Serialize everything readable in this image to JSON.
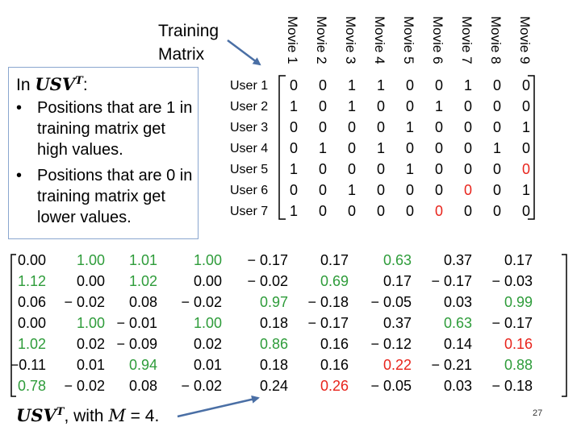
{
  "title_lines": [
    "Training",
    "Matrix"
  ],
  "columns": [
    "Movie 1",
    "Movie 2",
    "Movie 3",
    "Movie 4",
    "Movie 5",
    "Movie 6",
    "Movie 7",
    "Movie 8",
    "Movie 9"
  ],
  "rows": [
    "User 1",
    "User 2",
    "User 3",
    "User 4",
    "User 5",
    "User 6",
    "User 7"
  ],
  "training_matrix": [
    [
      0,
      0,
      1,
      1,
      0,
      0,
      1,
      0,
      0
    ],
    [
      1,
      0,
      1,
      0,
      0,
      1,
      0,
      0,
      0
    ],
    [
      0,
      0,
      0,
      0,
      1,
      0,
      0,
      0,
      1
    ],
    [
      0,
      1,
      0,
      1,
      0,
      0,
      0,
      1,
      0
    ],
    [
      1,
      0,
      0,
      0,
      1,
      0,
      0,
      0,
      0
    ],
    [
      0,
      0,
      1,
      0,
      0,
      0,
      0,
      0,
      1
    ],
    [
      1,
      0,
      0,
      0,
      0,
      0,
      0,
      0,
      0
    ]
  ],
  "training_colors": [
    [
      "",
      "",
      "",
      "",
      "",
      "",
      "",
      "",
      ""
    ],
    [
      "",
      "",
      "",
      "",
      "",
      "",
      "",
      "",
      ""
    ],
    [
      "",
      "",
      "",
      "",
      "",
      "",
      "",
      "",
      ""
    ],
    [
      "",
      "",
      "",
      "",
      "",
      "",
      "",
      "",
      ""
    ],
    [
      "",
      "",
      "",
      "",
      "",
      "",
      "",
      "",
      "red"
    ],
    [
      "",
      "",
      "",
      "",
      "",
      "",
      "red",
      "",
      ""
    ],
    [
      "",
      "",
      "",
      "",
      "",
      "red",
      "",
      "",
      ""
    ]
  ],
  "note": {
    "prefix": "In ",
    "math": "USV",
    "math_sup": "T",
    "suffix": ":",
    "bullet_glyph": "•",
    "bullets": [
      "Positions that are 1 in training matrix get high values.",
      "Positions that are 0 in training matrix get lower values."
    ]
  },
  "result_matrix": [
    [
      "0.00",
      "1.00",
      "1.01",
      "1.00",
      "− 0.17",
      "0.17",
      "0.63",
      "0.37",
      "0.17"
    ],
    [
      "1.12",
      "0.00",
      "1.02",
      "0.00",
      "− 0.02",
      "0.69",
      "0.17",
      "− 0.17",
      "− 0.03"
    ],
    [
      "0.06",
      "− 0.02",
      "0.08",
      "− 0.02",
      "0.97",
      "− 0.18",
      "− 0.05",
      "0.03",
      "0.99"
    ],
    [
      "0.00",
      "1.00",
      "− 0.01",
      "1.00",
      "0.18",
      "− 0.17",
      "0.37",
      "0.63",
      "− 0.17"
    ],
    [
      "1.02",
      "0.02",
      "− 0.09",
      "0.02",
      "0.86",
      "0.16",
      "− 0.12",
      "0.14",
      "0.16"
    ],
    [
      "−0.11",
      "0.01",
      "0.94",
      "0.01",
      "0.18",
      "0.16",
      "0.22",
      "− 0.21",
      "0.88"
    ],
    [
      "0.78",
      "− 0.02",
      "0.08",
      "− 0.02",
      "0.24",
      "0.26",
      "− 0.05",
      "0.03",
      "− 0.18"
    ]
  ],
  "result_colors": [
    [
      "",
      "green",
      "green",
      "green",
      "",
      "",
      "green",
      "",
      ""
    ],
    [
      "green",
      "",
      "green",
      "",
      "",
      "green",
      "",
      "",
      ""
    ],
    [
      "",
      "",
      "",
      "",
      "green",
      "",
      "",
      "",
      "green"
    ],
    [
      "",
      "green",
      "",
      "green",
      "",
      "",
      "",
      "green",
      ""
    ],
    [
      "green",
      "",
      "",
      "",
      "green",
      "",
      "",
      "",
      "red"
    ],
    [
      "",
      "",
      "green",
      "",
      "",
      "",
      "red",
      "",
      "green"
    ],
    [
      "green",
      "",
      "",
      "",
      "",
      "red",
      "",
      "",
      ""
    ]
  ],
  "caption": {
    "math": "USV",
    "math_sup": "T",
    "text": ", with ",
    "var": "M",
    "eq": " = 4."
  },
  "page_number": "27",
  "colors": {
    "green": "#2e9c3a",
    "red": "#e8241c",
    "box_border": "#8aa6cf",
    "arrow": "#4a6fa5"
  }
}
